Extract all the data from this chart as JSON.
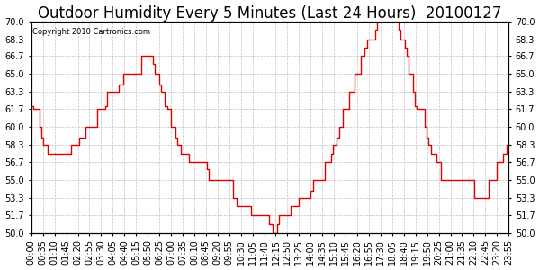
{
  "title": "Outdoor Humidity Every 5 Minutes (Last 24 Hours)  20100127",
  "copyright": "Copyright 2010 Cartronics.com",
  "line_color": "#dd0000",
  "bg_color": "#ffffff",
  "plot_bg_color": "#ffffff",
  "grid_color": "#c0c0c0",
  "ylim": [
    50.0,
    70.0
  ],
  "yticks": [
    50.0,
    51.7,
    53.3,
    55.0,
    56.7,
    58.3,
    60.0,
    61.7,
    63.3,
    65.0,
    66.7,
    68.3,
    70.0
  ],
  "title_fontsize": 12,
  "tick_fontsize": 7,
  "humidity_data": [
    62.0,
    61.7,
    61.7,
    61.7,
    60.0,
    59.0,
    58.3,
    58.3,
    57.5,
    57.5,
    57.5,
    57.5,
    57.5,
    57.5,
    57.5,
    57.5,
    57.5,
    57.5,
    57.5,
    57.5,
    58.3,
    58.3,
    58.3,
    58.3,
    59.0,
    59.0,
    59.0,
    60.0,
    60.0,
    60.0,
    60.0,
    60.0,
    60.0,
    61.7,
    61.7,
    61.7,
    61.7,
    62.0,
    63.3,
    63.3,
    63.3,
    63.3,
    63.3,
    63.3,
    64.0,
    64.0,
    65.0,
    65.0,
    65.0,
    65.0,
    65.0,
    65.0,
    65.0,
    65.0,
    65.0,
    66.7,
    66.7,
    66.7,
    66.7,
    66.7,
    66.7,
    66.0,
    65.0,
    65.0,
    64.0,
    63.3,
    63.3,
    62.0,
    61.7,
    61.7,
    60.0,
    60.0,
    59.0,
    58.3,
    58.3,
    57.5,
    57.5,
    57.5,
    57.5,
    56.7,
    56.7,
    56.7,
    56.7,
    56.7,
    56.7,
    56.7,
    56.7,
    56.7,
    56.0,
    55.0,
    55.0,
    55.0,
    55.0,
    55.0,
    55.0,
    55.0,
    55.0,
    55.0,
    55.0,
    55.0,
    55.0,
    53.3,
    53.3,
    52.5,
    52.5,
    52.5,
    52.5,
    52.5,
    52.5,
    52.5,
    51.7,
    51.7,
    51.7,
    51.7,
    51.7,
    51.7,
    51.7,
    51.7,
    51.7,
    50.8,
    50.8,
    50.0,
    50.0,
    50.8,
    51.7,
    51.7,
    51.7,
    51.7,
    51.7,
    51.7,
    52.5,
    52.5,
    52.5,
    52.5,
    53.3,
    53.3,
    53.3,
    53.3,
    53.3,
    53.3,
    54.0,
    55.0,
    55.0,
    55.0,
    55.0,
    55.0,
    55.0,
    56.7,
    56.7,
    56.7,
    57.5,
    58.3,
    58.3,
    59.0,
    60.0,
    60.0,
    61.7,
    61.7,
    61.7,
    63.3,
    63.3,
    63.3,
    65.0,
    65.0,
    65.0,
    66.7,
    66.7,
    67.5,
    68.3,
    68.3,
    68.3,
    68.3,
    69.2,
    70.0,
    70.0,
    70.0,
    70.0,
    70.0,
    70.0,
    70.0,
    70.0,
    70.0,
    70.0,
    70.0,
    69.2,
    68.3,
    68.3,
    67.5,
    66.7,
    65.0,
    65.0,
    63.3,
    62.0,
    61.7,
    61.7,
    61.7,
    61.7,
    60.0,
    59.0,
    58.3,
    57.5,
    57.5,
    57.5,
    56.7,
    56.7,
    55.0,
    55.0,
    55.0,
    55.0,
    55.0,
    55.0,
    55.0,
    55.0,
    55.0,
    55.0,
    55.0,
    55.0,
    55.0,
    55.0,
    55.0,
    55.0,
    55.0,
    53.3,
    53.3,
    53.3,
    53.3,
    53.3,
    53.3,
    53.3,
    55.0,
    55.0,
    55.0,
    55.0,
    56.7,
    56.7,
    56.7,
    57.5,
    57.5,
    58.3,
    58.3
  ],
  "x_tick_labels": [
    "00:00",
    "00:35",
    "01:10",
    "01:45",
    "02:20",
    "02:55",
    "03:30",
    "04:05",
    "04:40",
    "05:15",
    "05:50",
    "06:25",
    "07:00",
    "07:35",
    "08:10",
    "08:45",
    "09:20",
    "09:55",
    "10:30",
    "11:05",
    "11:40",
    "12:15",
    "12:50",
    "13:25",
    "14:00",
    "14:35",
    "15:10",
    "15:45",
    "16:20",
    "16:55",
    "17:30",
    "18:05",
    "18:40",
    "19:15",
    "19:50",
    "20:25",
    "21:00",
    "21:35",
    "22:10",
    "22:45",
    "23:20",
    "23:55"
  ]
}
